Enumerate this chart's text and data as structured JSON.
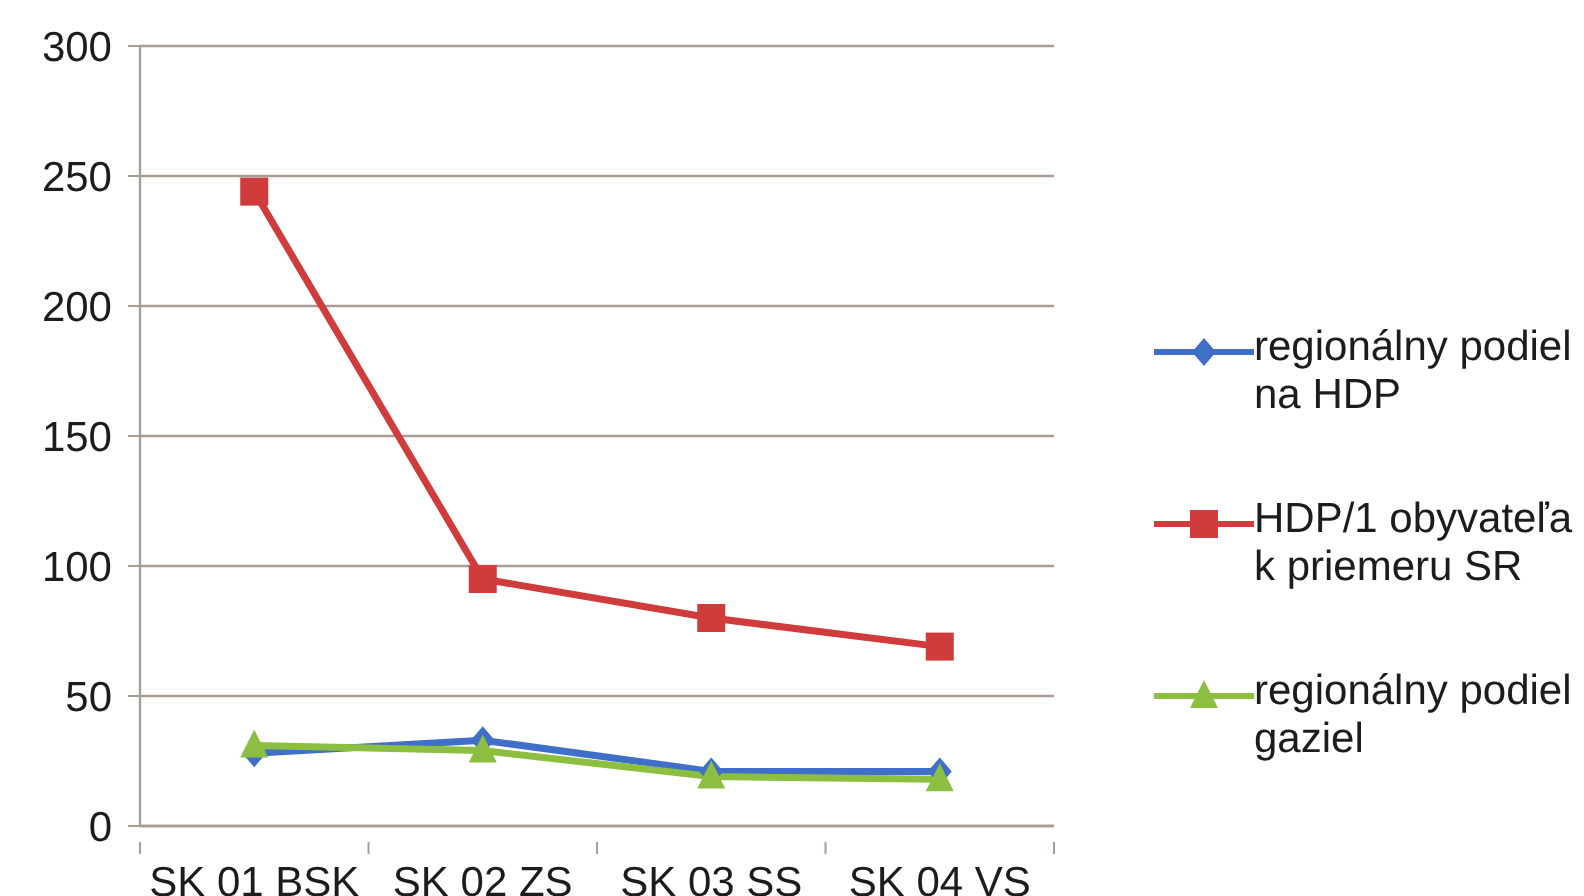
{
  "chart_data": {
    "type": "line",
    "categories": [
      "SK 01 BSK",
      "SK 02 ZS",
      "SK 03 SS",
      "SK 04 VS"
    ],
    "series": [
      {
        "name": "regionálny podiel na HDP",
        "color": "#3f6fc8",
        "marker": "diamond",
        "values": [
          28,
          33,
          21,
          21
        ]
      },
      {
        "name": "HDP/1 obyvateľa k priemeru SR",
        "color": "#d03b3b",
        "marker": "square",
        "values": [
          244,
          95,
          80,
          69
        ]
      },
      {
        "name": "regionálny podiel gaziel",
        "color": "#8cbf3f",
        "marker": "triangle",
        "values": [
          31,
          29,
          19,
          18
        ]
      }
    ],
    "ylim": [
      0,
      300
    ],
    "yticks": [
      0,
      50,
      100,
      150,
      200,
      250,
      300
    ],
    "grid": "y",
    "legend": "right"
  }
}
